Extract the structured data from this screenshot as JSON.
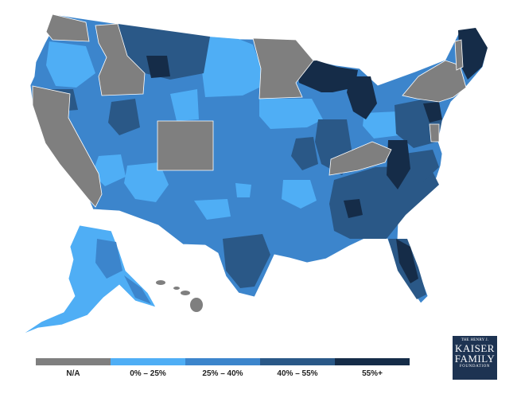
{
  "map": {
    "type": "choropleth",
    "region": "United States",
    "colors": {
      "na": "#7f7f7f",
      "bin1": "#4faef5",
      "bin2": "#3c85cc",
      "bin3": "#2a5887",
      "bin4": "#152c48",
      "boundary": "#2f6fae"
    },
    "na_states": [
      "California",
      "Idaho",
      "Minnesota",
      "Colorado",
      "Kentucky",
      "New York",
      "Vermont",
      "Washington D.C.",
      "Hawaii"
    ]
  },
  "legend": {
    "items": [
      {
        "label": "N/A",
        "color": "#7f7f7f"
      },
      {
        "label": "0% – 25%",
        "color": "#4faef5"
      },
      {
        "label": "25% – 40%",
        "color": "#3c85cc"
      },
      {
        "label": "40% – 55%",
        "color": "#2a5887"
      },
      {
        "label": "55%+",
        "color": "#152c48"
      }
    ]
  },
  "logo": {
    "line1": "THE HENRY J.",
    "line2": "KAISER",
    "line3": "FAMILY",
    "line4": "FOUNDATION"
  }
}
